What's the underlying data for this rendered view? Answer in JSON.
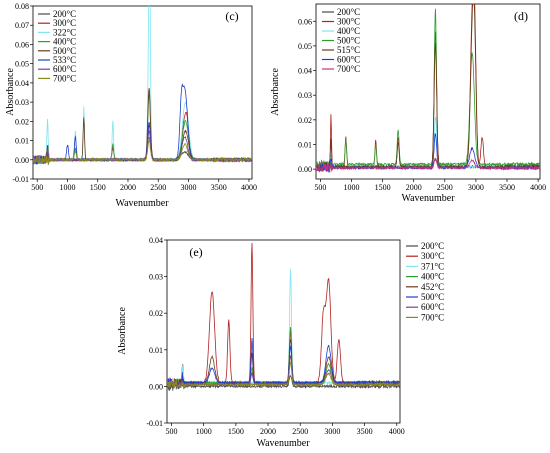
{
  "chart_data": [
    {
      "type": "line",
      "panel_label": "(c)",
      "xlabel": "Wavenumber",
      "ylabel": "Absorbance",
      "xlim": [
        430,
        4050
      ],
      "ylim": [
        -0.01,
        0.08
      ],
      "xticks": [
        500,
        1000,
        1500,
        2000,
        2500,
        3000,
        3500,
        4000
      ],
      "yticks": [
        -0.01,
        0.0,
        0.01,
        0.02,
        0.03,
        0.04,
        0.05,
        0.06,
        0.07,
        0.08
      ],
      "tick_labels": [
        "500",
        "1000",
        "1500",
        "2000",
        "2500",
        "3000",
        "3500",
        "4000",
        "-0.01",
        "0.00",
        "0.01",
        "0.02",
        "0.03",
        "0.04",
        "0.05",
        "0.06",
        "0.07",
        "0.08"
      ],
      "legend_position": "top-left",
      "series": [
        {
          "name": "200°C",
          "color": "#4a4a4a",
          "baseline": 0.0,
          "peaks": [
            [
              2349,
              0.012,
              25
            ],
            [
              2940,
              0.004,
              60
            ],
            [
              670,
              0.004,
              12
            ]
          ]
        },
        {
          "name": "300°C",
          "color": "#b22222",
          "baseline": 0.0,
          "peaks": [
            [
              2349,
              0.018,
              25
            ],
            [
              2930,
              0.02,
              35
            ],
            [
              2980,
              0.015,
              25
            ],
            [
              670,
              0.004,
              12
            ],
            [
              1750,
              0.006,
              15
            ]
          ]
        },
        {
          "name": "322°C",
          "color": "#7fe5f0",
          "baseline": 0.0,
          "peaks": [
            [
              2349,
              0.078,
              18
            ],
            [
              2360,
              0.05,
              10
            ],
            [
              670,
              0.02,
              10
            ],
            [
              1270,
              0.028,
              10
            ],
            [
              1130,
              0.015,
              10
            ],
            [
              2950,
              0.03,
              50
            ],
            [
              1750,
              0.02,
              12
            ]
          ]
        },
        {
          "name": "400°C",
          "color": "#2ca02c",
          "baseline": 0.0,
          "peaks": [
            [
              2349,
              0.035,
              20
            ],
            [
              2950,
              0.02,
              50
            ],
            [
              1750,
              0.008,
              15
            ],
            [
              1130,
              0.006,
              15
            ]
          ]
        },
        {
          "name": "500°C",
          "color": "#6b3a1a",
          "baseline": 0.0,
          "peaks": [
            [
              2349,
              0.037,
              22
            ],
            [
              1270,
              0.022,
              12
            ],
            [
              2950,
              0.015,
              50
            ],
            [
              670,
              0.006,
              12
            ]
          ]
        },
        {
          "name": "533°C",
          "color": "#1f3fd0",
          "baseline": 0.0,
          "peaks": [
            [
              2349,
              0.02,
              22
            ],
            [
              2940,
              0.036,
              45
            ],
            [
              2880,
              0.02,
              25
            ],
            [
              1130,
              0.012,
              15
            ],
            [
              1000,
              0.008,
              15
            ]
          ]
        },
        {
          "name": "600°C",
          "color": "#7a3fa0",
          "baseline": 0.0,
          "peaks": [
            [
              2349,
              0.015,
              22
            ],
            [
              2940,
              0.012,
              45
            ],
            [
              670,
              0.004,
              12
            ]
          ]
        },
        {
          "name": "700°C",
          "color": "#8a8a1a",
          "baseline": 0.0,
          "peaks": [
            [
              2349,
              0.01,
              22
            ],
            [
              2940,
              0.008,
              45
            ],
            [
              1130,
              0.004,
              20
            ]
          ]
        }
      ]
    },
    {
      "type": "line",
      "panel_label": "(d)",
      "xlabel": "Wavenumber",
      "ylabel": "Absorbance",
      "xlim": [
        430,
        4030
      ],
      "ylim": [
        -0.004,
        0.067
      ],
      "xticks": [
        500,
        1000,
        1500,
        2000,
        2500,
        3000,
        3500,
        4000
      ],
      "yticks": [
        0.0,
        0.01,
        0.02,
        0.03,
        0.04,
        0.05,
        0.06
      ],
      "tick_labels": [
        "500",
        "1000",
        "1500",
        "2000",
        "2500",
        "3000",
        "3500",
        "4000",
        "0.00",
        "0.01",
        "0.02",
        "0.03",
        "0.04",
        "0.05",
        "0.06"
      ],
      "legend_position": "top-left",
      "series": [
        {
          "name": "200°C",
          "color": "#4a4a4a",
          "baseline": 0.001,
          "peaks": [
            [
              2349,
              0.003,
              22
            ],
            [
              670,
              0.003,
              10
            ]
          ]
        },
        {
          "name": "300°C",
          "color": "#b22222",
          "baseline": 0.001,
          "peaks": [
            [
              2349,
              0.055,
              20
            ],
            [
              2940,
              0.055,
              30
            ],
            [
              2980,
              0.045,
              25
            ],
            [
              670,
              0.022,
              8
            ],
            [
              1750,
              0.012,
              15
            ],
            [
              1390,
              0.011,
              12
            ],
            [
              910,
              0.012,
              12
            ],
            [
              3100,
              0.012,
              20
            ]
          ]
        },
        {
          "name": "400°C",
          "color": "#7fe5f0",
          "baseline": 0.001,
          "peaks": [
            [
              2349,
              0.02,
              20
            ],
            [
              670,
              0.004,
              10
            ]
          ]
        },
        {
          "name": "500°C",
          "color": "#2ca02c",
          "baseline": 0.002,
          "peaks": [
            [
              2349,
              0.063,
              18
            ],
            [
              2940,
              0.045,
              35
            ],
            [
              1750,
              0.014,
              15
            ],
            [
              910,
              0.01,
              12
            ],
            [
              1390,
              0.008,
              12
            ]
          ]
        },
        {
          "name": "515°C",
          "color": "#6b3a1a",
          "baseline": 0.001,
          "peaks": [
            [
              2349,
              0.05,
              20
            ],
            [
              2940,
              0.05,
              30
            ],
            [
              2980,
              0.04,
              25
            ],
            [
              1750,
              0.01,
              15
            ],
            [
              670,
              0.01,
              10
            ]
          ]
        },
        {
          "name": "600°C",
          "color": "#1f3fd0",
          "baseline": 0.0005,
          "peaks": [
            [
              2349,
              0.014,
              20
            ],
            [
              2940,
              0.008,
              40
            ],
            [
              670,
              0.003,
              10
            ]
          ]
        },
        {
          "name": "700°C",
          "color": "#c0327a",
          "baseline": 0.0005,
          "peaks": [
            [
              2349,
              0.004,
              20
            ],
            [
              2940,
              0.003,
              40
            ]
          ]
        }
      ]
    },
    {
      "type": "line",
      "panel_label": "(e)",
      "xlabel": "Wavenumber",
      "ylabel": "Absorbance",
      "xlim": [
        430,
        4050
      ],
      "ylim": [
        -0.01,
        0.04
      ],
      "xticks": [
        500,
        1000,
        1500,
        2000,
        2500,
        3000,
        3500,
        4000
      ],
      "yticks": [
        -0.01,
        0.0,
        0.01,
        0.02,
        0.03,
        0.04
      ],
      "tick_labels": [
        "500",
        "1000",
        "1500",
        "2000",
        "2500",
        "3000",
        "3500",
        "4000",
        "-0.01",
        "0.00",
        "0.01",
        "0.02",
        "0.03",
        "0.04"
      ],
      "legend_position": "top-right",
      "series": [
        {
          "name": "200°C",
          "color": "#4a4a4a",
          "baseline": 0.0,
          "peaks": [
            [
              2349,
              0.003,
              20
            ],
            [
              670,
              0.002,
              10
            ]
          ]
        },
        {
          "name": "300°C",
          "color": "#b22222",
          "baseline": 0.001,
          "peaks": [
            [
              1750,
              0.038,
              14
            ],
            [
              1130,
              0.025,
              40
            ],
            [
              1390,
              0.017,
              18
            ],
            [
              2349,
              0.014,
              18
            ],
            [
              2940,
              0.028,
              35
            ],
            [
              2860,
              0.018,
              30
            ],
            [
              3100,
              0.012,
              25
            ],
            [
              670,
              0.005,
              10
            ]
          ]
        },
        {
          "name": "371°C",
          "color": "#7fe5f0",
          "baseline": 0.001,
          "peaks": [
            [
              2349,
              0.031,
              14
            ],
            [
              670,
              0.004,
              10
            ]
          ]
        },
        {
          "name": "400°C",
          "color": "#2ca02c",
          "baseline": 0.001,
          "peaks": [
            [
              2349,
              0.015,
              18
            ],
            [
              2940,
              0.005,
              40
            ],
            [
              1750,
              0.004,
              15
            ]
          ]
        },
        {
          "name": "452°C",
          "color": "#6b3a1a",
          "baseline": 0.001,
          "peaks": [
            [
              2349,
              0.012,
              18
            ],
            [
              1130,
              0.007,
              40
            ],
            [
              1750,
              0.008,
              15
            ],
            [
              2940,
              0.007,
              40
            ]
          ]
        },
        {
          "name": "500°C",
          "color": "#1f3fd0",
          "baseline": 0.001,
          "peaks": [
            [
              1750,
              0.012,
              14
            ],
            [
              2349,
              0.01,
              18
            ],
            [
              2940,
              0.01,
              40
            ],
            [
              1130,
              0.004,
              40
            ],
            [
              670,
              0.003,
              10
            ]
          ]
        },
        {
          "name": "600°C",
          "color": "#7a3fa0",
          "baseline": 0.0005,
          "peaks": [
            [
              2349,
              0.008,
              18
            ],
            [
              2940,
              0.004,
              40
            ],
            [
              1750,
              0.003,
              15
            ]
          ]
        },
        {
          "name": "700°C",
          "color": "#8a8a1a",
          "baseline": 0.0005,
          "peaks": [
            [
              2349,
              0.006,
              18
            ],
            [
              2940,
              0.003,
              40
            ]
          ]
        }
      ]
    }
  ]
}
